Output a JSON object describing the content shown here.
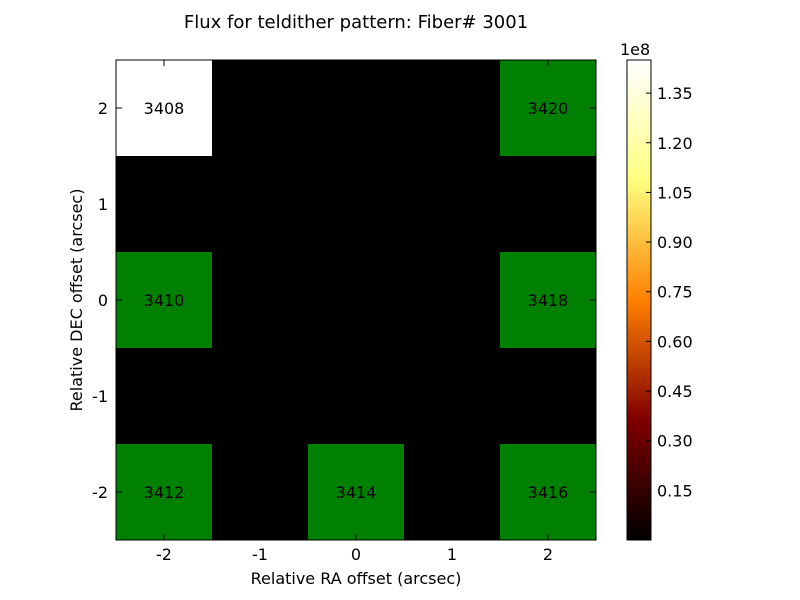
{
  "chart_data": {
    "type": "heatmap",
    "title": "Flux for teldither pattern: Fiber# 3001",
    "xlabel": "Relative RA offset (arcsec)",
    "ylabel": "Relative DEC offset (arcsec)",
    "x_ticks": [
      "-2",
      "-1",
      "0",
      "1",
      "2"
    ],
    "y_ticks": [
      "2",
      "1",
      "0",
      "-1",
      "-2"
    ],
    "xlim": [
      -2.5,
      2.5
    ],
    "ylim": [
      -2.5,
      2.5
    ],
    "background_color": "#000000",
    "cells": [
      {
        "x": -2,
        "y": 2,
        "label": "3408",
        "color": "#ffffff"
      },
      {
        "x": 2,
        "y": 2,
        "label": "3420",
        "color": "#008000"
      },
      {
        "x": -2,
        "y": 0,
        "label": "3410",
        "color": "#008000"
      },
      {
        "x": 2,
        "y": 0,
        "label": "3418",
        "color": "#008000"
      },
      {
        "x": -2,
        "y": -2,
        "label": "3412",
        "color": "#008000"
      },
      {
        "x": 0,
        "y": -2,
        "label": "3414",
        "color": "#008000"
      },
      {
        "x": 2,
        "y": -2,
        "label": "3416",
        "color": "#008000"
      }
    ],
    "colorbar": {
      "colormap": "afmhot",
      "multiplier": "1e8",
      "range": [
        0.0,
        1.45
      ],
      "ticks": [
        "0.15",
        "0.30",
        "0.45",
        "0.60",
        "0.75",
        "0.90",
        "1.05",
        "1.20",
        "1.35"
      ],
      "tick_values": [
        0.15,
        0.3,
        0.45,
        0.6,
        0.75,
        0.9,
        1.05,
        1.2,
        1.35
      ]
    }
  }
}
